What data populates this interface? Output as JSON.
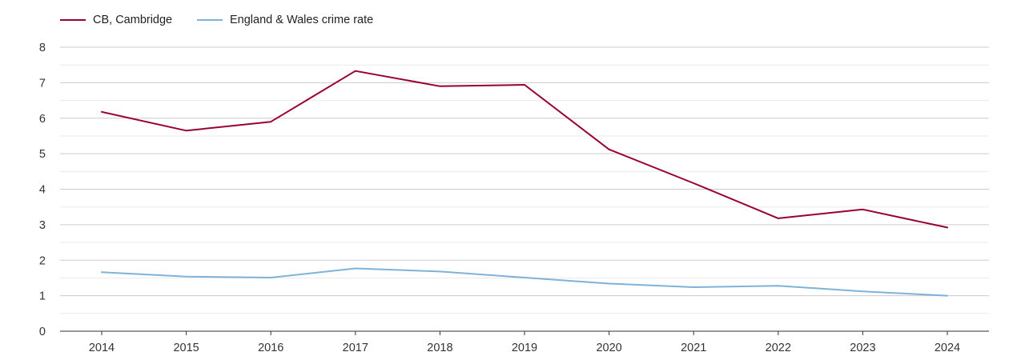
{
  "chart_data": {
    "type": "line",
    "title": "",
    "xlabel": "",
    "ylabel": "",
    "categories": [
      "2014",
      "2015",
      "2016",
      "2017",
      "2018",
      "2019",
      "2020",
      "2021",
      "2022",
      "2023",
      "2024"
    ],
    "ylim": [
      0,
      8
    ],
    "yticks": [
      "0",
      "1",
      "2",
      "3",
      "4",
      "5",
      "6",
      "7",
      "8"
    ],
    "grid": true,
    "legend_position": "top-left",
    "series": [
      {
        "name": "CB, Cambridge",
        "color": "#99002e",
        "values": [
          6.18,
          5.65,
          5.9,
          7.33,
          6.9,
          6.94,
          5.12,
          4.17,
          3.18,
          3.43,
          2.92
        ]
      },
      {
        "name": "England & Wales crime rate",
        "color": "#7eb2d9",
        "values": [
          1.66,
          1.54,
          1.51,
          1.77,
          1.68,
          1.51,
          1.34,
          1.24,
          1.28,
          1.12,
          1.0
        ]
      }
    ]
  }
}
